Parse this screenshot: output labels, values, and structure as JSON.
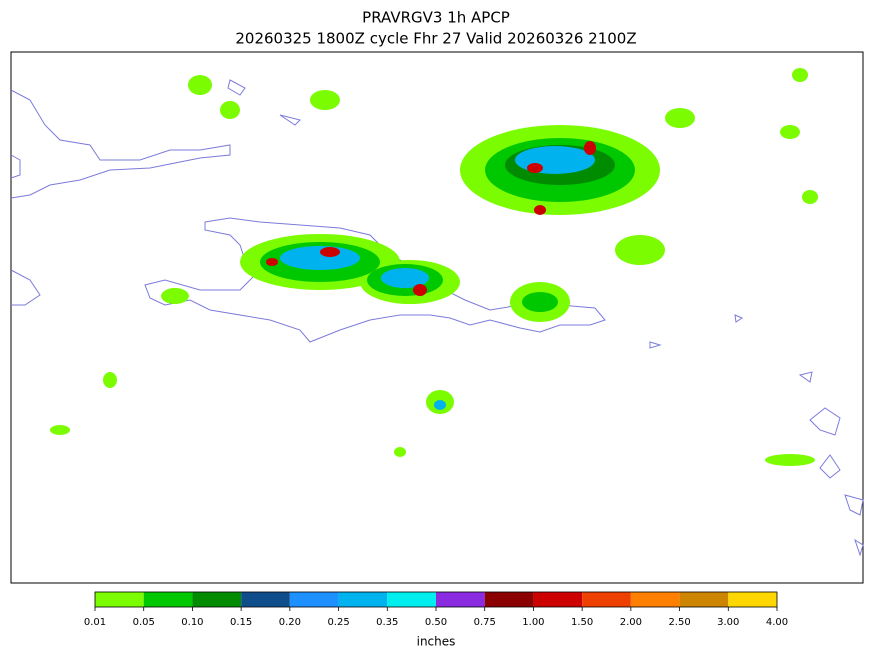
{
  "chart_data": {
    "type": "colorbar-map",
    "title": "PRAVRGV3 1h APCP",
    "subtitle": "20260325 1800Z cycle Fhr 27 Valid 20260326 2100Z",
    "colorbar_label": "inches",
    "levels": [
      0.01,
      0.05,
      {
        "value": 0.1,
        "label": "0.10"
      },
      0.15,
      {
        "value": 0.2,
        "label": "0.20"
      },
      0.25,
      0.35,
      {
        "value": 0.5,
        "label": "0.50"
      },
      0.75,
      {
        "value": 1,
        "label": "1.00"
      },
      {
        "value": 1.5,
        "label": "1.50"
      },
      {
        "value": 2,
        "label": "2.00"
      },
      {
        "value": 2.5,
        "label": "2.50"
      },
      {
        "value": 3,
        "label": "3.00"
      },
      {
        "value": 4,
        "label": "4.00"
      }
    ],
    "colors": [
      "#7cfc00",
      "#00c800",
      "#008b00",
      "#104e8b",
      "#1e90ff",
      "#00b2ee",
      "#00eeee",
      "#8a2be2",
      "#8b0000",
      "#cd0000",
      "#ee4000",
      "#ff7f00",
      "#cd8500",
      "#ffd700"
    ]
  }
}
